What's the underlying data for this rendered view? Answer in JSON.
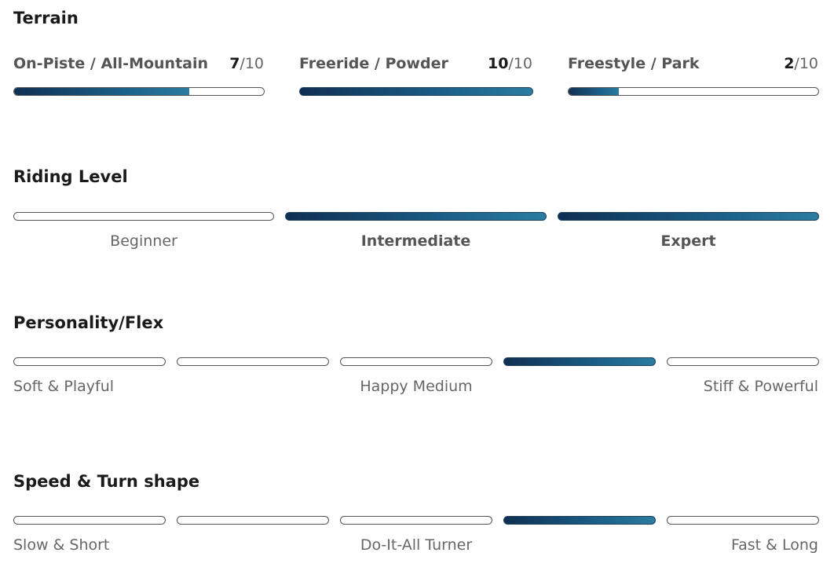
{
  "terrain": {
    "title": "Terrain",
    "items": [
      {
        "label": "On-Piste / All-Mountain",
        "score": "7",
        "max": "/10",
        "fraction": 0.7
      },
      {
        "label": "Freeride / Powder",
        "score": "10",
        "max": "/10",
        "fraction": 1.0
      },
      {
        "label": "Freestyle / Park",
        "score": "2",
        "max": "/10",
        "fraction": 0.2
      }
    ]
  },
  "riding_level": {
    "title": "Riding Level",
    "levels": [
      {
        "label": "Beginner",
        "active": false
      },
      {
        "label": "Intermediate",
        "active": true
      },
      {
        "label": "Expert",
        "active": true
      }
    ]
  },
  "flex": {
    "title": "Personality/Flex",
    "active_index": 3,
    "segments": 5,
    "label_left": "Soft & Playful",
    "label_mid": "Happy Medium",
    "label_right": "Stiff & Powerful"
  },
  "speed": {
    "title": "Speed & Turn shape",
    "active_index": 3,
    "segments": 5,
    "label_left": "Slow & Short",
    "label_mid": "Do-It-All Turner",
    "label_right": "Fast & Long"
  }
}
